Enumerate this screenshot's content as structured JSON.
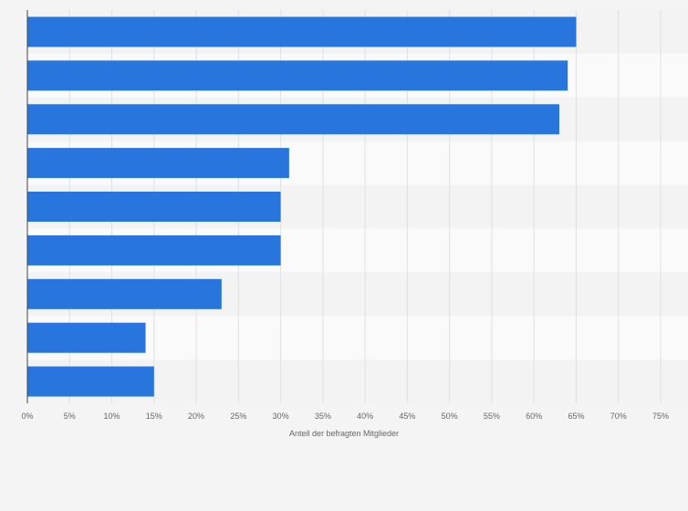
{
  "chart_data": {
    "type": "bar",
    "orientation": "horizontal",
    "title": "",
    "xlabel": "Anteil der befragten Mitglieder",
    "ylabel": "",
    "categories": [
      "",
      "",
      "",
      "",
      "",
      "",
      "",
      "",
      ""
    ],
    "values": [
      65,
      64,
      63,
      31,
      30,
      30,
      23,
      14,
      15
    ],
    "xlim": [
      0,
      75
    ],
    "xticks": [
      "0%",
      "5%",
      "10%",
      "15%",
      "20%",
      "25%",
      "30%",
      "35%",
      "40%",
      "45%",
      "50%",
      "55%",
      "60%",
      "65%",
      "70%",
      "75%"
    ],
    "grid": true,
    "legend": "none"
  },
  "colors": {
    "bar": "#2876dd",
    "background": "#f4f4f4",
    "band_light": "#fafafa",
    "band_dark": "#f3f3f3",
    "grid": "#e0e0e0",
    "axis": "#444444"
  }
}
